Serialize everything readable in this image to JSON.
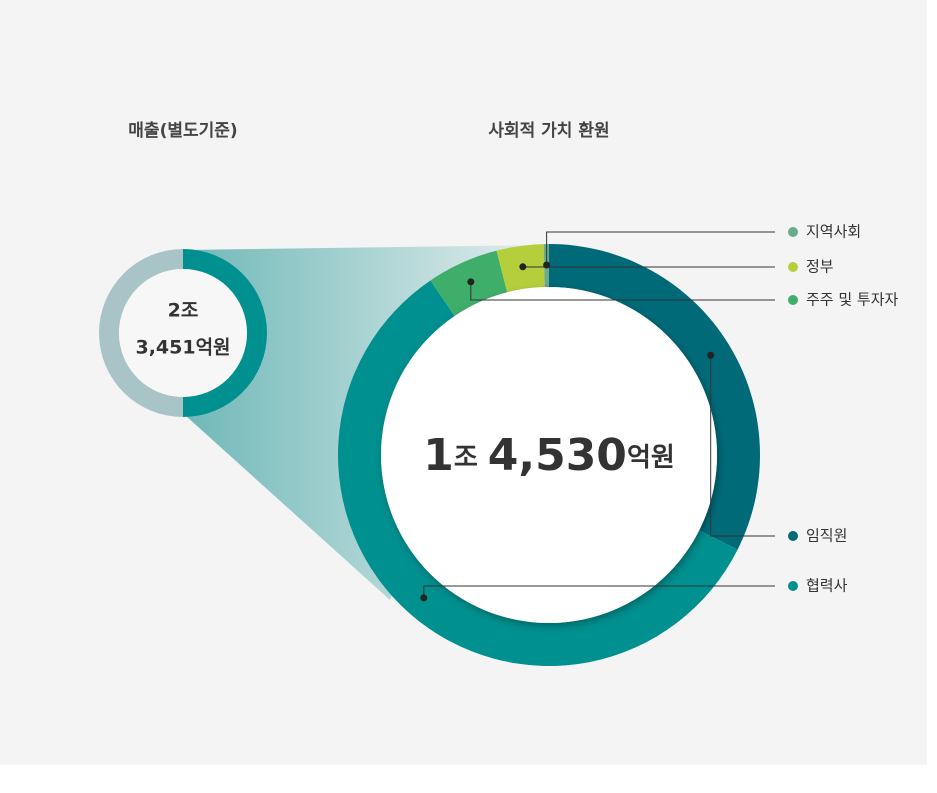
{
  "chart_data": [
    {
      "type": "donut",
      "title": "매출(별도기준)",
      "center_label": [
        "2조",
        "3,451억원"
      ],
      "categories": [
        null,
        null
      ],
      "values": [
        50,
        50
      ],
      "colors": [
        "#00908f",
        "#a8c4c6"
      ]
    },
    {
      "type": "donut",
      "title": "사회적 가치 환원",
      "center_label": [
        "1",
        "조",
        "4,530",
        "억원"
      ],
      "categories": [
        "임직원",
        "협력사",
        "주주 및 투자자",
        "정부",
        "지역사회"
      ],
      "values": [
        32.4,
        58.1,
        5.5,
        3.6,
        0.4
      ],
      "colors": [
        "#006a78",
        "#00908f",
        "#3fae6a",
        "#b5cf3c",
        "#6aaa8e"
      ]
    }
  ]
}
